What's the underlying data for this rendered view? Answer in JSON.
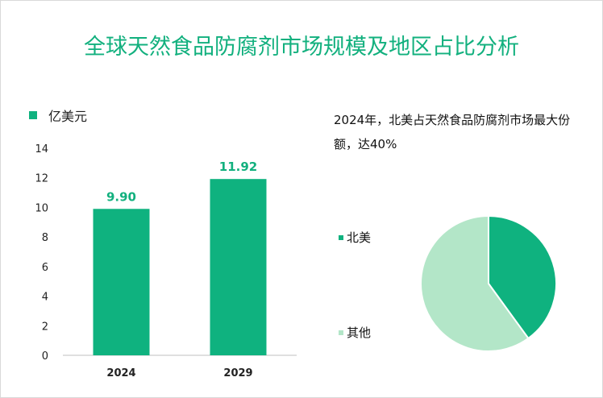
{
  "title": "全球天然食品防腐剂市场规模及地区占比分析",
  "chart_data": [
    {
      "type": "bar",
      "legend_label": "亿美元",
      "categories": [
        "2024",
        "2029"
      ],
      "values": [
        9.9,
        11.92
      ],
      "data_labels": [
        "9.90",
        "11.92"
      ],
      "ylim": [
        0,
        14
      ],
      "yticks": [
        0,
        2,
        4,
        6,
        8,
        10,
        12,
        14
      ],
      "legend_position": "top-left",
      "grid": false,
      "colors": {
        "bar": "#0fb27f",
        "label": "#12b07e"
      }
    },
    {
      "type": "pie",
      "annotation": "2024年，北美占天然食品防腐剂市场最大份额，达40%",
      "slices": [
        {
          "label": "北美",
          "value": 40,
          "color": "#0fb27f"
        },
        {
          "label": "其他",
          "value": 60,
          "color": "#b3e6c8"
        }
      ],
      "legend_position": "left"
    }
  ]
}
